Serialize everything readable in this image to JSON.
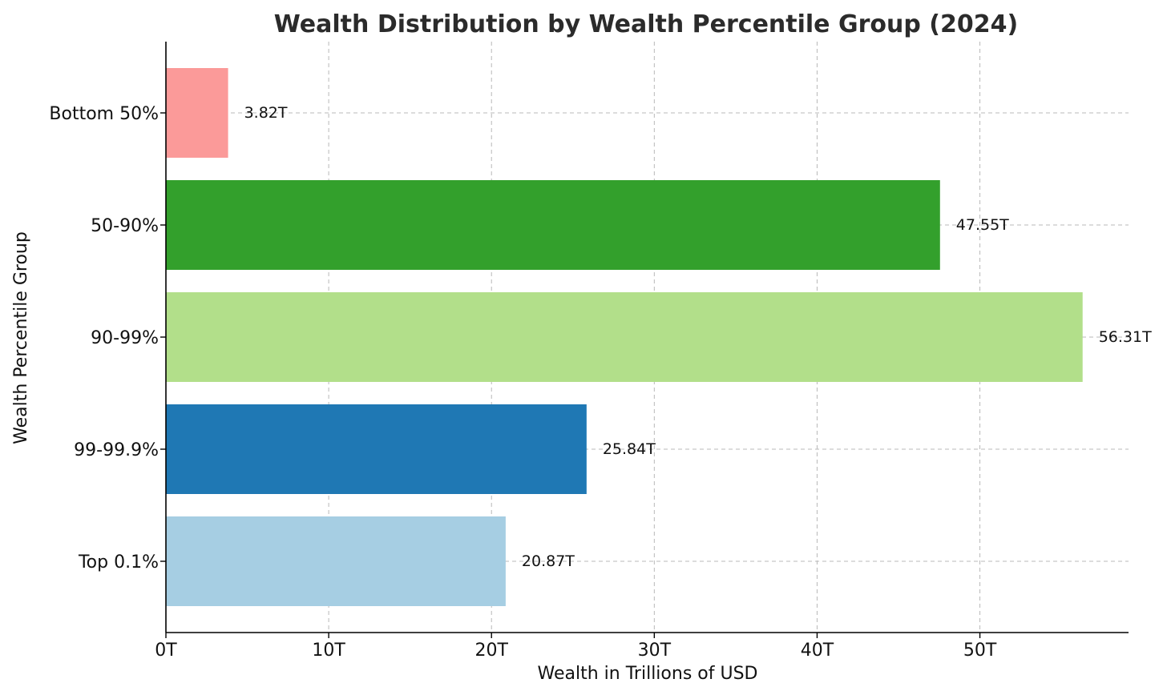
{
  "chart_data": {
    "type": "bar",
    "orientation": "horizontal",
    "title": "Wealth Distribution by Wealth Percentile Group (2024)",
    "xlabel": "Wealth in Trillions of USD",
    "ylabel": "Wealth Percentile Group",
    "categories": [
      "Bottom 50%",
      "50-90%",
      "90-99%",
      "99-99.9%",
      "Top 0.1%"
    ],
    "values": [
      3.82,
      47.55,
      56.31,
      25.84,
      20.87
    ],
    "value_labels": [
      "3.82T",
      "47.55T",
      "56.31T",
      "25.84T",
      "20.87T"
    ],
    "colors": [
      "#fb9a99",
      "#33a02c",
      "#b2df8a",
      "#1f78b4",
      "#a6cee3"
    ],
    "xticks": [
      0,
      10,
      20,
      30,
      40,
      50
    ],
    "xtick_labels": [
      "0T",
      "10T",
      "20T",
      "30T",
      "40T",
      "50T"
    ],
    "xlim": [
      0,
      59.13
    ],
    "grid": true,
    "legend": false
  }
}
